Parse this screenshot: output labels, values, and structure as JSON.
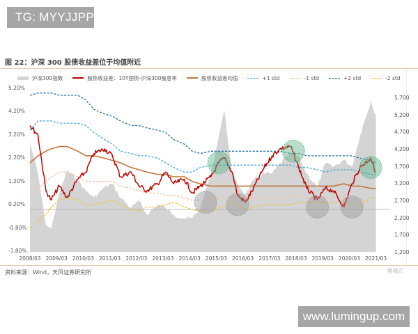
{
  "watermarks": {
    "top": "TG: MYYJJPP",
    "bottom": "www.lumingup.com"
  },
  "figure": {
    "title": "图 22：沪深 300 股债收益差位于均值附近",
    "source": "资料来源：Wind，天风证券研究所",
    "brand": "格隆汇"
  },
  "colors": {
    "index_area": "#d4d4d4",
    "spread_line": "#c00000",
    "mean_line": "#c0773a",
    "plus1": "#3fa8d8",
    "minus1": "#f2c2a0",
    "plus2": "#1f6fa6",
    "minus2": "#f0c43c",
    "highlight_high": "#5fb58a",
    "highlight_low": "#999999"
  },
  "chart_data": {
    "type": "line",
    "title": "图 22：沪深 300 股债收益差位于均值附近",
    "xlabel": "",
    "ylabel_left": "股债收益差 (%)",
    "ylabel_right": "沪深300指数",
    "x_ticks": [
      "2008/03",
      "2009/03",
      "2010/03",
      "2011/03",
      "2012/03",
      "2013/03",
      "2014/03",
      "2015/03",
      "2016/03",
      "2017/03",
      "2018/03",
      "2019/03",
      "2020/03",
      "2021/03"
    ],
    "y_left_ticks": [
      "5.20%",
      "4.20%",
      "3.20%",
      "2.20%",
      "1.20%",
      "0.20%",
      "-0.80%",
      "-1.80%"
    ],
    "y_left_range": [
      -1.8,
      5.2
    ],
    "y_right_ticks": [
      "5,700",
      "5,200",
      "4,700",
      "4,200",
      "3,700",
      "3,200",
      "2,700",
      "2,200",
      "1,700",
      "1,200"
    ],
    "y_right_range": [
      1200,
      5700
    ],
    "legend": [
      "沪深300指数",
      "股债收益差：10Y国债-沪深300股息率",
      "股债收益差均值",
      "+1 std",
      "-1 std",
      "+2 std",
      "-2 std"
    ],
    "legend_position": "top",
    "grid": false,
    "x": [
      2008.2,
      2008.5,
      2008.8,
      2009.0,
      2009.3,
      2009.6,
      2010.0,
      2010.3,
      2010.6,
      2011.0,
      2011.3,
      2011.6,
      2012.0,
      2012.3,
      2012.6,
      2013.0,
      2013.3,
      2013.6,
      2014.0,
      2014.3,
      2014.6,
      2015.0,
      2015.3,
      2015.5,
      2015.8,
      2016.0,
      2016.3,
      2016.6,
      2017.0,
      2017.3,
      2017.6,
      2018.0,
      2018.3,
      2018.6,
      2019.0,
      2019.3,
      2019.6,
      2020.0,
      2020.3,
      2020.6,
      2021.0,
      2021.2
    ],
    "series": [
      {
        "name": "沪深300指数",
        "type": "area",
        "axis": "right",
        "values": [
          4400,
          3500,
          2000,
          1900,
          2900,
          3600,
          3300,
          3000,
          2800,
          3100,
          3200,
          2800,
          2500,
          2700,
          2300,
          2600,
          2500,
          2300,
          2200,
          2200,
          2500,
          3500,
          4600,
          5350,
          3500,
          3200,
          2900,
          3300,
          3500,
          3500,
          3800,
          4100,
          4000,
          3500,
          3100,
          3800,
          3700,
          3900,
          3700,
          4600,
          5600,
          5200
        ]
      },
      {
        "name": "股债收益差：10Y国债-沪深300股息率",
        "type": "line",
        "axis": "left",
        "values": [
          3.6,
          3.2,
          0.8,
          0.4,
          1.0,
          0.5,
          1.3,
          1.6,
          2.4,
          2.6,
          2.3,
          1.4,
          1.6,
          1.0,
          0.8,
          1.1,
          1.6,
          1.1,
          1.3,
          0.7,
          1.0,
          1.4,
          2.0,
          2.2,
          1.6,
          0.6,
          0.3,
          0.9,
          1.8,
          2.3,
          2.6,
          2.7,
          1.8,
          0.9,
          0.4,
          0.9,
          0.8,
          0.1,
          1.1,
          1.8,
          2.2,
          1.6
        ]
      },
      {
        "name": "股债收益差均值",
        "type": "line",
        "axis": "left",
        "values": [
          2.0,
          2.3,
          2.5,
          2.6,
          2.7,
          2.7,
          2.5,
          2.3,
          2.3,
          2.2,
          2.1,
          2.0,
          1.8,
          1.7,
          1.6,
          1.5,
          1.5,
          1.4,
          1.4,
          1.2,
          1.1,
          1.0,
          1.0,
          1.0,
          1.0,
          1.0,
          1.0,
          1.0,
          1.0,
          1.0,
          1.0,
          1.0,
          1.0,
          1.0,
          1.0,
          1.0,
          1.0,
          1.1,
          1.0,
          1.0,
          0.9,
          0.9
        ]
      },
      {
        "name": "+1 std",
        "type": "line",
        "axis": "left",
        "values": [
          3.4,
          3.8,
          3.8,
          3.8,
          3.7,
          3.7,
          3.7,
          3.6,
          3.3,
          3.0,
          2.8,
          2.5,
          2.4,
          2.3,
          2.3,
          2.2,
          2.0,
          1.8,
          1.6,
          1.6,
          1.8,
          1.9,
          1.9,
          1.9,
          1.9,
          1.9,
          1.9,
          1.9,
          1.9,
          1.9,
          1.9,
          1.9,
          1.8,
          1.8,
          1.7,
          1.6,
          1.7,
          1.7,
          1.7,
          1.6,
          1.5,
          1.5
        ]
      },
      {
        "name": "-1 std",
        "type": "line",
        "axis": "left",
        "values": [
          0.6,
          0.9,
          1.2,
          1.4,
          1.6,
          1.6,
          1.4,
          1.2,
          1.2,
          1.2,
          1.2,
          1.0,
          0.9,
          0.8,
          0.7,
          0.7,
          0.6,
          0.6,
          0.5,
          0.4,
          0.4,
          0.4,
          0.5,
          0.5,
          0.5,
          0.5,
          0.5,
          0.5,
          0.5,
          0.5,
          0.5,
          0.5,
          0.6,
          0.5,
          0.5,
          0.5,
          0.5,
          0.5,
          0.4,
          0.4,
          0.3,
          0.3
        ]
      },
      {
        "name": "+2 std",
        "type": "line",
        "axis": "left",
        "values": [
          4.9,
          5.0,
          5.0,
          5.0,
          4.9,
          4.9,
          4.9,
          4.7,
          4.3,
          4.1,
          4.0,
          3.8,
          3.6,
          3.6,
          3.5,
          3.4,
          3.3,
          3.0,
          2.8,
          2.5,
          2.4,
          2.5,
          2.5,
          2.5,
          2.5,
          2.5,
          2.5,
          2.5,
          2.5,
          2.5,
          2.5,
          2.4,
          2.4,
          2.3,
          2.3,
          2.3,
          2.3,
          2.3,
          2.3,
          2.2,
          2.1,
          2.0
        ]
      },
      {
        "name": "-2 std",
        "type": "line",
        "axis": "left",
        "values": [
          -0.8,
          -0.5,
          -0.2,
          0.1,
          0.4,
          0.5,
          0.4,
          0.2,
          0.2,
          0.3,
          0.4,
          0.2,
          0.0,
          -0.1,
          0.1,
          0.1,
          0.2,
          0.3,
          0.1,
          0.0,
          -0.1,
          -0.1,
          0.1,
          0.1,
          0.3,
          0.2,
          0.0,
          0.1,
          0.2,
          0.2,
          0.2,
          0.2,
          0.3,
          0.3,
          0.3,
          0.3,
          0.3,
          0.3,
          0.2,
          0.2,
          0.5,
          0.5
        ]
      }
    ],
    "annotations": [
      {
        "type": "circle",
        "color": "green",
        "x": 2015.3,
        "y": 2.0,
        "label": "high"
      },
      {
        "type": "circle",
        "color": "green",
        "x": 2018.1,
        "y": 2.5,
        "label": "high"
      },
      {
        "type": "circle",
        "color": "green",
        "x": 2021.0,
        "y": 1.8,
        "label": "high"
      },
      {
        "type": "circle",
        "color": "gray",
        "x": 2014.8,
        "y": 0.3,
        "label": "low"
      },
      {
        "type": "circle",
        "color": "gray",
        "x": 2016.0,
        "y": 0.2,
        "label": "low"
      },
      {
        "type": "circle",
        "color": "gray",
        "x": 2019.0,
        "y": 0.1,
        "label": "low"
      },
      {
        "type": "circle",
        "color": "gray",
        "x": 2020.3,
        "y": 0.1,
        "label": "low"
      }
    ]
  },
  "legend_labels": [
    "沪深300指数",
    "股债收益差：10Y国债-沪深300股息率",
    "股债收益差均值",
    "+1 std",
    "-1 std",
    "+2 std",
    "-2 std"
  ]
}
